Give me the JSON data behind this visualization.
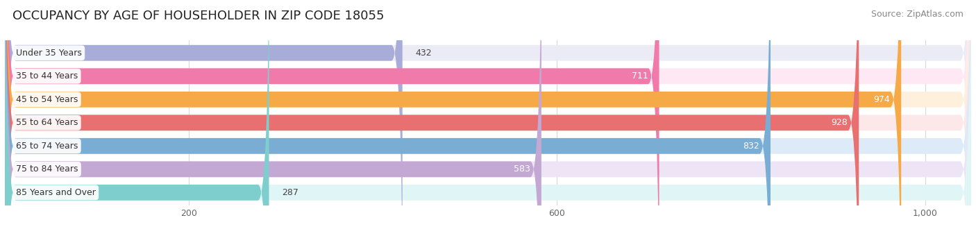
{
  "title": "OCCUPANCY BY AGE OF HOUSEHOLDER IN ZIP CODE 18055",
  "source": "Source: ZipAtlas.com",
  "categories": [
    "Under 35 Years",
    "35 to 44 Years",
    "45 to 54 Years",
    "55 to 64 Years",
    "65 to 74 Years",
    "75 to 84 Years",
    "85 Years and Over"
  ],
  "values": [
    432,
    711,
    974,
    928,
    832,
    583,
    287
  ],
  "bar_colors": [
    "#a8acd8",
    "#f07aaa",
    "#f5a947",
    "#e87070",
    "#7aadd4",
    "#c4a8d4",
    "#7ecece"
  ],
  "bar_bg_colors": [
    "#ebebf5",
    "#fde8f3",
    "#fef0dc",
    "#fce8e8",
    "#ddeaf8",
    "#ede5f5",
    "#e0f5f5"
  ],
  "xlim_min": 0,
  "xlim_max": 1050,
  "xticks": [
    200,
    600,
    1000
  ],
  "title_fontsize": 13,
  "source_fontsize": 9,
  "bar_label_fontsize": 9,
  "category_fontsize": 9,
  "background_color": "#ffffff",
  "value_inside_threshold": 500
}
